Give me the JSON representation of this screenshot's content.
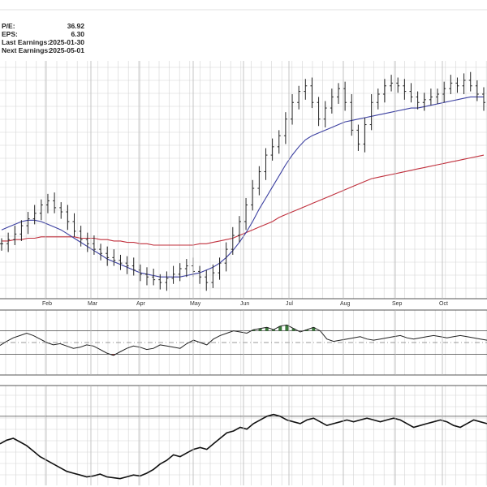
{
  "info": {
    "rows": [
      {
        "label": "P/E:",
        "value": "36.92"
      },
      {
        "label": "EPS:",
        "value": "6.30"
      },
      {
        "label": "Last Earnings:",
        "value": "2025-01-30"
      },
      {
        "label": "Next Earnings:",
        "value": "2025-05-01"
      }
    ]
  },
  "colors": {
    "price": "#222222",
    "ma_fast": "#3b3fa0",
    "ma_slow": "#c0303d",
    "positive_fill": "#3c7a3c",
    "negative_fill": "#b03a3a",
    "grid": "#d4d4d4",
    "panel_border": "#555555"
  },
  "chart_data": [
    {
      "type": "ohlc",
      "months": [
        "Feb",
        "Mar",
        "Apr",
        "May",
        "Jun",
        "Jul",
        "Aug",
        "Sep",
        "Oct"
      ],
      "price_closes": [
        290,
        293,
        297,
        303,
        308,
        312,
        318,
        321,
        316,
        313,
        306,
        299,
        293,
        290,
        286,
        283,
        280,
        278,
        276,
        274,
        271,
        268,
        266,
        264,
        262,
        265,
        268,
        272,
        274,
        270,
        266,
        262,
        269,
        276,
        286,
        296,
        306,
        318,
        330,
        342,
        354,
        360,
        368,
        380,
        392,
        400,
        404,
        392,
        380,
        388,
        396,
        402,
        392,
        372,
        362,
        376,
        392,
        398,
        404,
        406,
        404,
        400,
        396,
        392,
        394,
        396,
        398,
        402,
        406,
        404,
        408,
        404,
        398,
        392
      ],
      "ma_fast": [
        300,
        302,
        304,
        306,
        307,
        307,
        306,
        304,
        302,
        300,
        297,
        294,
        291,
        288,
        285,
        282,
        279,
        277,
        275,
        273,
        271,
        269,
        268,
        267,
        266,
        266,
        266,
        266,
        267,
        268,
        269,
        271,
        273,
        276,
        280,
        285,
        291,
        298,
        306,
        315,
        323,
        331,
        339,
        347,
        354,
        360,
        365,
        368,
        370,
        372,
        374,
        376,
        378,
        379,
        380,
        381,
        382,
        383,
        384,
        385,
        386,
        387,
        388,
        388,
        389,
        390,
        391,
        392,
        393,
        394,
        395,
        396,
        396,
        396
      ],
      "ma_slow": [
        292,
        292,
        293,
        293,
        294,
        294,
        295,
        295,
        295,
        295,
        295,
        295,
        294,
        294,
        294,
        293,
        293,
        292,
        292,
        291,
        291,
        290,
        290,
        289,
        289,
        289,
        289,
        289,
        289,
        289,
        290,
        290,
        291,
        292,
        293,
        294,
        296,
        298,
        300,
        302,
        304,
        306,
        309,
        311,
        313,
        315,
        317,
        319,
        321,
        323,
        325,
        327,
        329,
        331,
        333,
        335,
        337,
        338,
        339,
        340,
        341,
        342,
        343,
        344,
        345,
        346,
        347,
        348,
        349,
        350,
        351,
        352,
        353,
        354
      ]
    },
    {
      "type": "line",
      "oscillator_values": [
        45,
        52,
        58,
        62,
        66,
        62,
        56,
        50,
        46,
        48,
        44,
        40,
        42,
        46,
        44,
        38,
        32,
        28,
        34,
        40,
        44,
        42,
        38,
        40,
        46,
        44,
        42,
        40,
        48,
        54,
        50,
        46,
        56,
        62,
        66,
        70,
        68,
        66,
        72,
        74,
        76,
        72,
        78,
        80,
        74,
        68,
        72,
        76,
        70,
        56,
        52,
        54,
        56,
        58,
        60,
        56,
        54,
        56,
        58,
        60,
        62,
        58,
        56,
        58,
        60,
        62,
        60,
        58,
        60,
        62,
        60,
        58,
        56,
        54
      ],
      "upper_band": 70,
      "lower_band": 30
    },
    {
      "type": "line",
      "breadth_values": [
        40,
        44,
        46,
        42,
        38,
        32,
        26,
        22,
        18,
        14,
        10,
        8,
        6,
        4,
        5,
        7,
        4,
        3,
        2,
        4,
        6,
        5,
        8,
        12,
        18,
        22,
        28,
        26,
        30,
        34,
        36,
        34,
        40,
        46,
        52,
        54,
        58,
        56,
        62,
        66,
        70,
        72,
        70,
        66,
        64,
        62,
        66,
        68,
        64,
        60,
        62,
        64,
        66,
        64,
        66,
        68,
        66,
        64,
        66,
        68,
        66,
        62,
        58,
        60,
        62,
        64,
        66,
        64,
        60,
        58,
        62,
        66,
        64,
        62
      ],
      "reference_level": 70
    }
  ]
}
